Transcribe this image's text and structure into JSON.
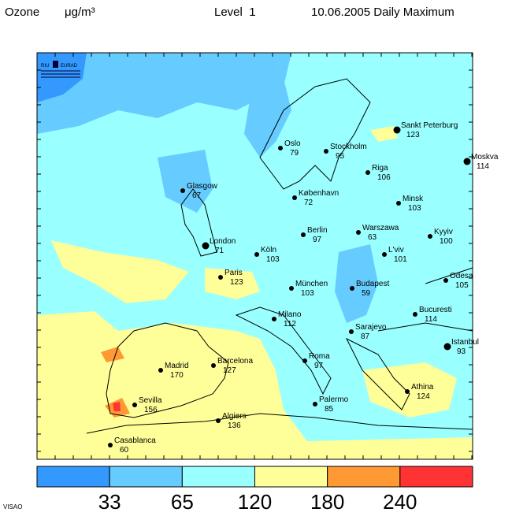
{
  "header": {
    "species": "Ozone",
    "unit": "μg/m³",
    "level": "Level  1",
    "date": "10.06.2005 Daily Maximum"
  },
  "logo": {
    "left": "RIU",
    "right": "EURAD"
  },
  "cities": [
    {
      "name": "Sankt Peterburg",
      "value": 123
    },
    {
      "name": "Oslo",
      "value": 79
    },
    {
      "name": "Stockholm",
      "value": 95
    },
    {
      "name": "Moskva",
      "value": 114
    },
    {
      "name": "Riga",
      "value": 106
    },
    {
      "name": "Glasgow",
      "value": 67
    },
    {
      "name": "København",
      "value": 72
    },
    {
      "name": "Minsk",
      "value": 103
    },
    {
      "name": "Berlin",
      "value": 97
    },
    {
      "name": "Warszawa",
      "value": 63
    },
    {
      "name": "Kyyiv",
      "value": 100
    },
    {
      "name": "London",
      "value": 71
    },
    {
      "name": "Köln",
      "value": 103
    },
    {
      "name": "L'viv",
      "value": 101
    },
    {
      "name": "Paris",
      "value": 123
    },
    {
      "name": "Odesa",
      "value": 105
    },
    {
      "name": "München",
      "value": 103
    },
    {
      "name": "Budapest",
      "value": 59
    },
    {
      "name": "Bucuresti",
      "value": 114
    },
    {
      "name": "Milano",
      "value": 112
    },
    {
      "name": "Sarajevo",
      "value": 87
    },
    {
      "name": "Istanbul",
      "value": 93
    },
    {
      "name": "Barcelona",
      "value": 127
    },
    {
      "name": "Roma",
      "value": 97
    },
    {
      "name": "Madrid",
      "value": 170
    },
    {
      "name": "Athina",
      "value": 124
    },
    {
      "name": "Sevilla",
      "value": 156
    },
    {
      "name": "Palermo",
      "value": 85
    },
    {
      "name": "Algiers",
      "value": 136
    },
    {
      "name": "Casablanca",
      "value": 60
    }
  ],
  "legend": {
    "colors": [
      "#3399ff",
      "#66ccff",
      "#99ffff",
      "#ffff99",
      "#ff9933",
      "#ff3333"
    ],
    "thresholds": [
      33,
      65,
      120,
      180,
      240
    ]
  },
  "footer": "VISAO"
}
